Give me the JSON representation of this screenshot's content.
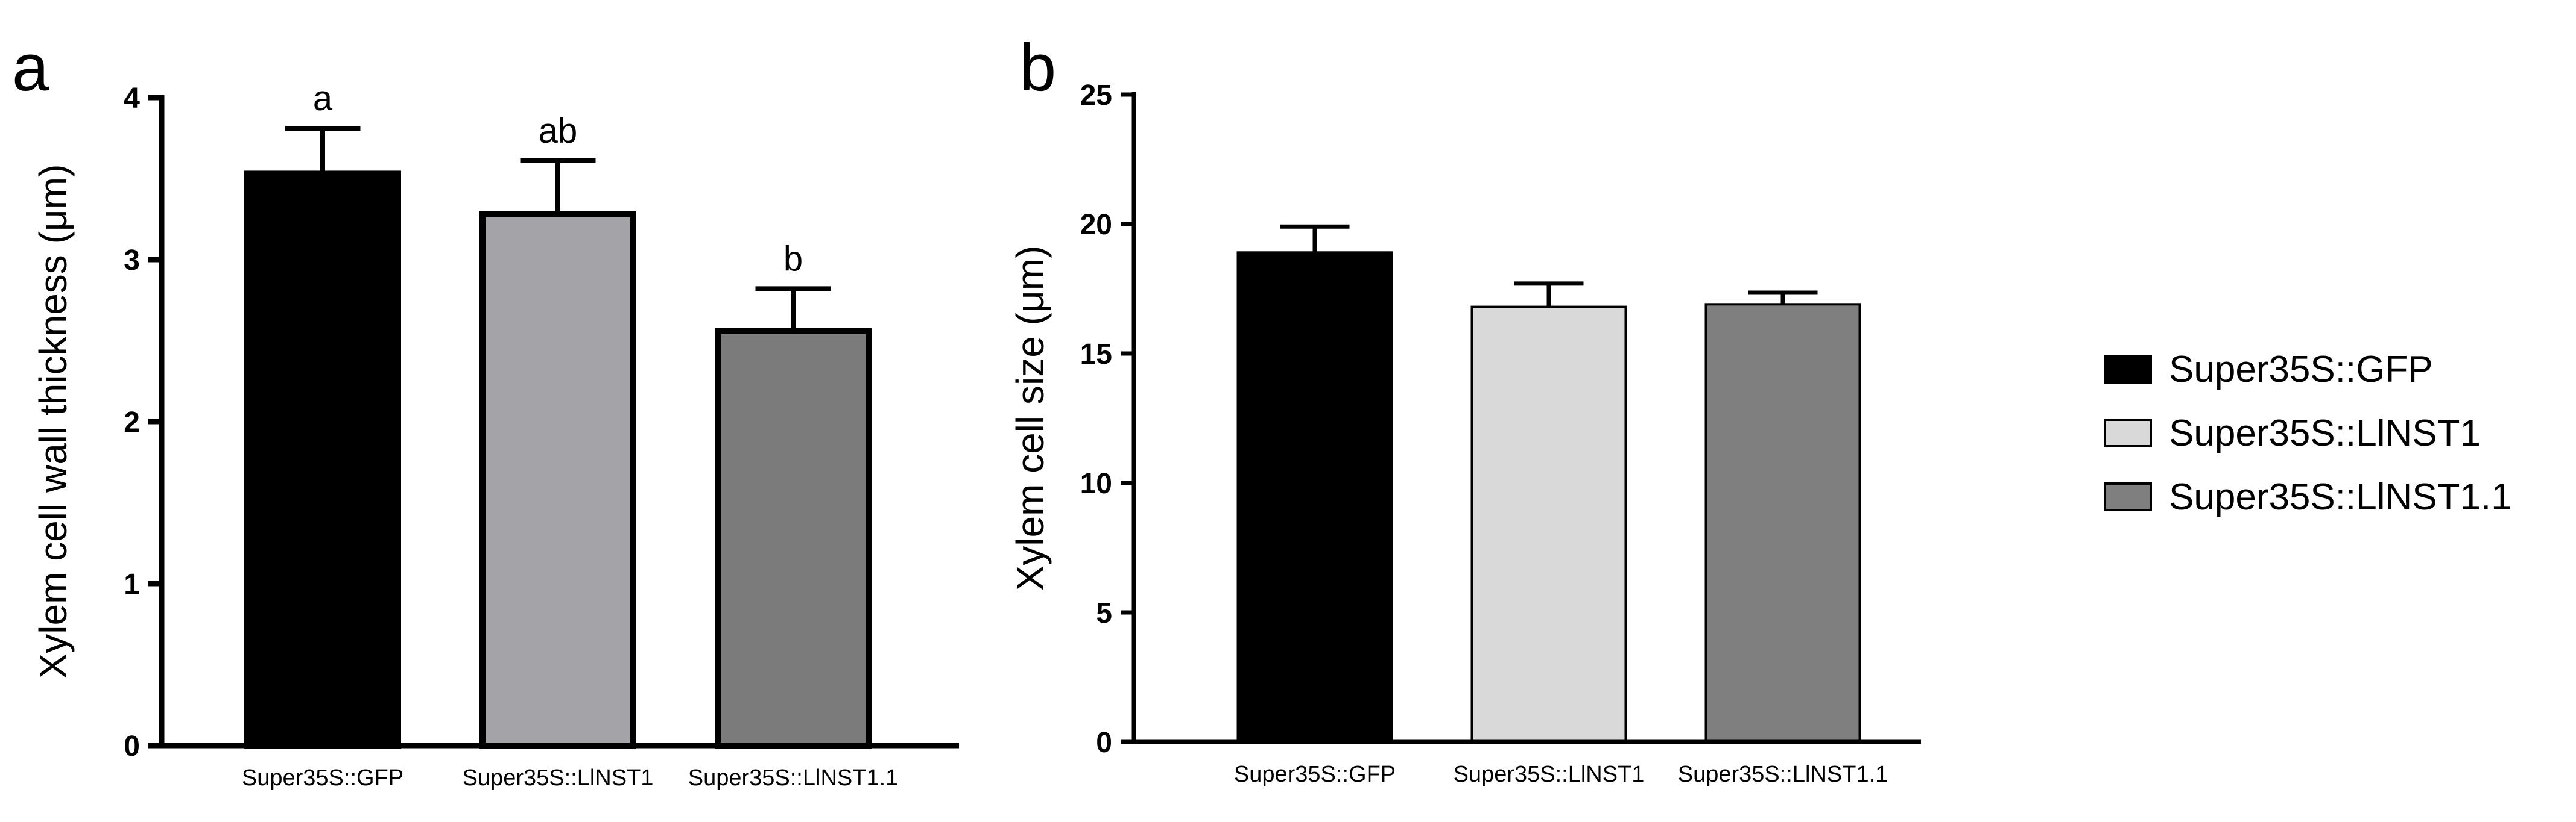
{
  "chart_data": [
    {
      "type": "bar",
      "panel_label": "a",
      "title": "",
      "xlabel": "",
      "ylabel": "Xylem cell wall thickness (μm)",
      "ylim": [
        0,
        4
      ],
      "yticks": [
        "0",
        "1",
        "2",
        "3",
        "4"
      ],
      "categories": [
        "Super35S::GFP",
        "Super35S::LlNST1",
        "Super35S::LlNST1.1"
      ],
      "values": [
        3.53,
        3.28,
        2.56
      ],
      "errors": [
        0.28,
        0.33,
        0.26
      ],
      "significance_letters": [
        "a",
        "ab",
        "b"
      ],
      "colors": [
        "#000000",
        "#a3a3a8",
        "#7b7b7b"
      ]
    },
    {
      "type": "bar",
      "panel_label": "b",
      "title": "",
      "xlabel": "",
      "ylabel": "Xylem cell size (μm)",
      "ylim": [
        0,
        25
      ],
      "yticks": [
        "0",
        "5",
        "10",
        "15",
        "20",
        "25"
      ],
      "categories": [
        "Super35S::GFP",
        "Super35S::LlNST1",
        "Super35S::LlNST1.1"
      ],
      "values": [
        18.9,
        16.8,
        16.9
      ],
      "errors": [
        1.0,
        0.9,
        0.45
      ],
      "colors": [
        "#000000",
        "#d9d9d9",
        "#7f7f7f"
      ]
    }
  ],
  "legend": {
    "placement": "right",
    "items": [
      {
        "label": "Super35S::GFP",
        "color": "#000000"
      },
      {
        "label": "Super35S::LlNST1",
        "color": "#d9d9d9"
      },
      {
        "label": "Super35S::LlNST1.1",
        "color": "#7f7f7f"
      }
    ]
  }
}
